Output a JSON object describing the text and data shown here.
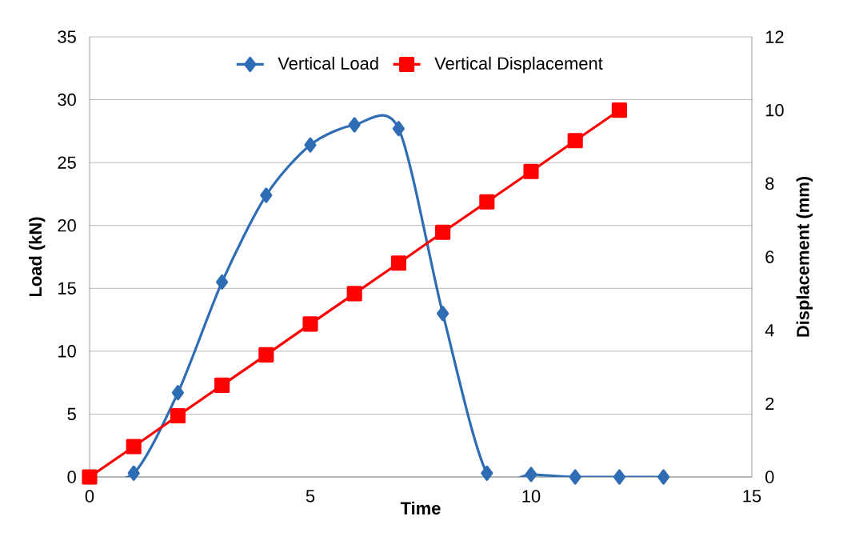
{
  "chart_data": {
    "type": "line",
    "xlabel": "Time",
    "ylabel": "Load (kN)",
    "y2label": "Displacement (mm)",
    "xlim": [
      0,
      15
    ],
    "xticks": [
      0,
      5,
      10,
      15
    ],
    "ylim": [
      0,
      35
    ],
    "yticks": [
      0,
      5,
      10,
      15,
      20,
      25,
      30,
      35
    ],
    "y2lim": [
      0,
      12
    ],
    "y2ticks": [
      0,
      2,
      4,
      6,
      8,
      10,
      12
    ],
    "grid": "y",
    "legend": "top",
    "line_style": "solid",
    "series": [
      {
        "name": "Vertical Load",
        "color": "#2e6db4",
        "marker": "diamond",
        "x": [
          0,
          1,
          2,
          3,
          4,
          5,
          6,
          7,
          8,
          9,
          10,
          11,
          12,
          13
        ],
        "values": [
          0,
          0.3,
          6.7,
          15.5,
          22.4,
          26.4,
          28.0,
          27.7,
          13.0,
          0.3,
          0.2,
          0,
          0,
          0
        ]
      },
      {
        "name": "Vertical Displacement",
        "color": "#ff0000",
        "marker": "square",
        "axis": "y2",
        "x": [
          0,
          1,
          2,
          3,
          4,
          5,
          6,
          7,
          8,
          9,
          10,
          11,
          12
        ],
        "values": [
          0,
          0.83,
          1.67,
          2.5,
          3.33,
          4.17,
          5.0,
          5.83,
          6.67,
          7.5,
          8.33,
          9.17,
          10.0
        ]
      }
    ]
  }
}
